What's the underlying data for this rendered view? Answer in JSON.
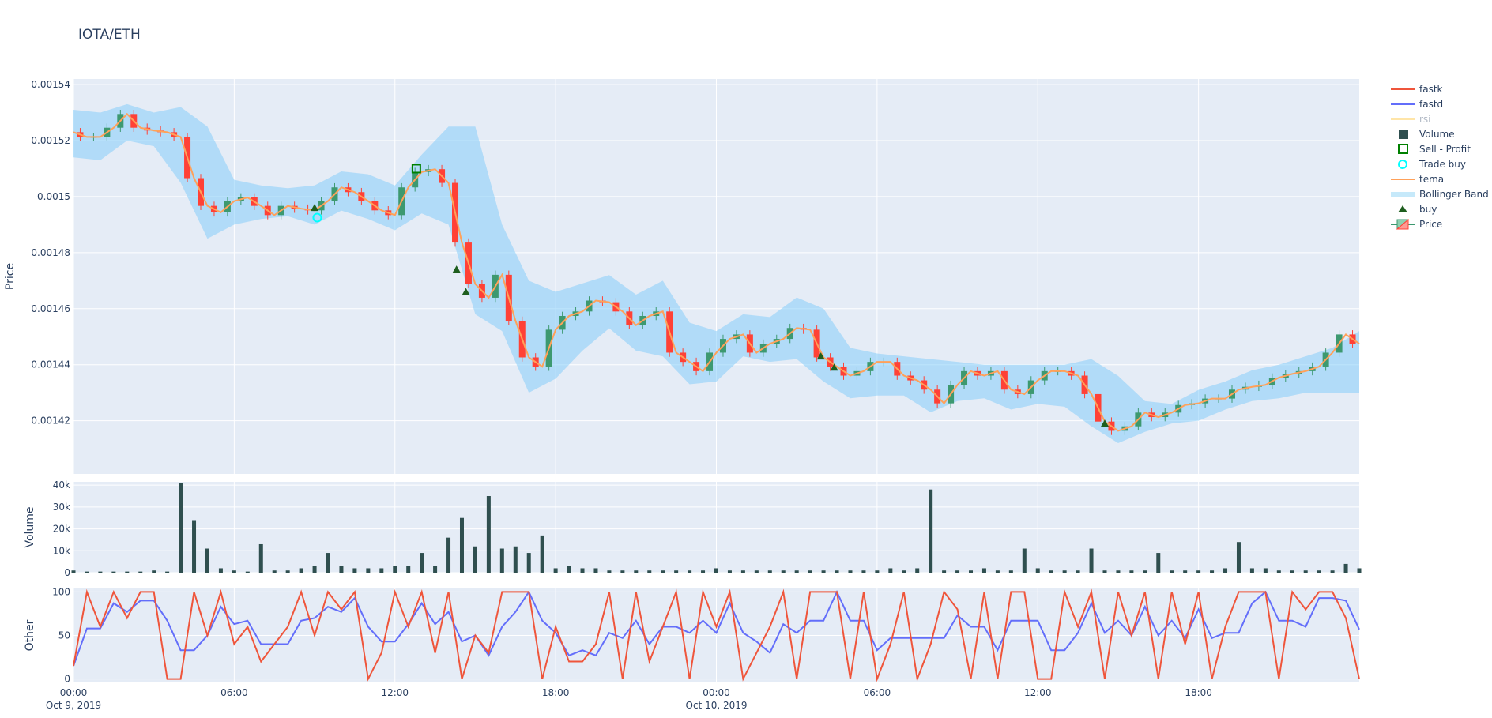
{
  "chart_data": {
    "type": "candlestick",
    "title": "IOTA/ETH",
    "x_start": "2019-10-09 00:00",
    "x_step_minutes": 30,
    "x_range_hours": [
      0,
      48
    ],
    "x_ticks": [
      {
        "hour": 0,
        "label": "00:00",
        "sub": "Oct 9, 2019"
      },
      {
        "hour": 6,
        "label": "06:00",
        "sub": ""
      },
      {
        "hour": 12,
        "label": "12:00",
        "sub": ""
      },
      {
        "hour": 18,
        "label": "18:00",
        "sub": ""
      },
      {
        "hour": 24,
        "label": "00:00",
        "sub": "Oct 10, 2019"
      },
      {
        "hour": 30,
        "label": "06:00",
        "sub": ""
      },
      {
        "hour": 36,
        "label": "12:00",
        "sub": ""
      },
      {
        "hour": 42,
        "label": "18:00",
        "sub": ""
      }
    ],
    "price_panel": {
      "ylabel": "Price",
      "ylim": [
        0.001401,
        0.001542
      ],
      "y_ticks": [
        0.00142,
        0.00144,
        0.00146,
        0.00148,
        0.0015,
        0.00152,
        0.00154
      ],
      "y_tick_labels": [
        "0.00142",
        "0.00144",
        "0.00146",
        "0.00148",
        "0.0015",
        "0.00152",
        "0.00154"
      ],
      "close": [
        0.001523,
        0.0015213,
        0.0015213,
        0.0015246,
        0.0015295,
        0.0015246,
        0.0015236,
        0.001523,
        0.0015213,
        0.0015066,
        0.0014967,
        0.0014944,
        0.0014984,
        0.0014997,
        0.0014967,
        0.0014934,
        0.0014967,
        0.0014957,
        0.0014951,
        0.0014984,
        0.0015033,
        0.0015016,
        0.0014984,
        0.0014951,
        0.0014934,
        0.0015033,
        0.0015088,
        0.0015098,
        0.0015049,
        0.0014836,
        0.0014688,
        0.0014639,
        0.0014721,
        0.0014557,
        0.0014426,
        0.0014393,
        0.0014525,
        0.0014574,
        0.001459,
        0.0014629,
        0.0014623,
        0.001459,
        0.0014541,
        0.0014574,
        0.001459,
        0.0014443,
        0.001441,
        0.0014377,
        0.0014443,
        0.0014492,
        0.0014508,
        0.0014443,
        0.0014475,
        0.0014492,
        0.0014531,
        0.0014525,
        0.0014426,
        0.0014393,
        0.0014361,
        0.0014377,
        0.001441,
        0.001441,
        0.0014361,
        0.0014344,
        0.0014311,
        0.0014262,
        0.0014328,
        0.0014377,
        0.0014361,
        0.0014377,
        0.0014311,
        0.0014295,
        0.0014344,
        0.0014377,
        0.0014377,
        0.0014361,
        0.0014295,
        0.0014197,
        0.0014164,
        0.001418,
        0.0014229,
        0.0014213,
        0.0014229,
        0.0014256,
        0.0014262,
        0.0014279,
        0.0014279,
        0.0014311,
        0.0014321,
        0.0014328,
        0.0014354,
        0.0014367,
        0.0014377,
        0.0014393,
        0.0014443,
        0.0014508,
        0.0014475
      ],
      "bb_step_minutes": 60,
      "bb_upper": [
        0.001531,
        0.00153,
        0.001533,
        0.00153,
        0.001532,
        0.001525,
        0.001506,
        0.001504,
        0.001503,
        0.001504,
        0.001509,
        0.001508,
        0.001504,
        0.001515,
        0.001525,
        0.001525,
        0.00149,
        0.00147,
        0.001466,
        0.001469,
        0.001472,
        0.001465,
        0.00147,
        0.001455,
        0.001452,
        0.001458,
        0.001457,
        0.001464,
        0.00146,
        0.001446,
        0.001444,
        0.001443,
        0.001442,
        0.001441,
        0.00144,
        0.00144,
        0.00144,
        0.00144,
        0.001442,
        0.001436,
        0.001427,
        0.001426,
        0.001431,
        0.001434,
        0.001438,
        0.00144,
        0.001443,
        0.001446,
        0.001452
      ],
      "bb_lower": [
        0.001514,
        0.001513,
        0.00152,
        0.001518,
        0.001505,
        0.001485,
        0.00149,
        0.001492,
        0.001493,
        0.00149,
        0.001495,
        0.001492,
        0.001488,
        0.001494,
        0.00149,
        0.001458,
        0.001452,
        0.00143,
        0.001435,
        0.001445,
        0.001453,
        0.001445,
        0.001443,
        0.001433,
        0.001434,
        0.001443,
        0.001441,
        0.001442,
        0.001434,
        0.001428,
        0.001429,
        0.001429,
        0.001423,
        0.001427,
        0.001428,
        0.001424,
        0.001426,
        0.001425,
        0.001418,
        0.001412,
        0.001416,
        0.001419,
        0.00142,
        0.001424,
        0.001427,
        0.001428,
        0.00143,
        0.00143,
        0.00143
      ],
      "buy_markers": [
        {
          "hour": 9.0,
          "price": 0.001496
        },
        {
          "hour": 14.3,
          "price": 0.001474
        },
        {
          "hour": 14.65,
          "price": 0.001466
        },
        {
          "hour": 27.9,
          "price": 0.001443
        },
        {
          "hour": 28.4,
          "price": 0.001439
        },
        {
          "hour": 38.5,
          "price": 0.001419
        }
      ],
      "trade_buy": [
        {
          "hour": 9.1,
          "price": 0.0014925
        }
      ],
      "sell_profit": [
        {
          "hour": 12.8,
          "price": 0.00151
        }
      ]
    },
    "volume_panel": {
      "ylabel": "Volume",
      "ylim": [
        0,
        41500
      ],
      "y_ticks": [
        0,
        10000,
        20000,
        30000,
        40000
      ],
      "y_tick_labels": [
        "0",
        "10k",
        "20k",
        "30k",
        "40k"
      ],
      "values": [
        1000,
        500,
        500,
        500,
        500,
        500,
        1000,
        500,
        41000,
        24000,
        11000,
        2000,
        1000,
        500,
        13000,
        1000,
        1000,
        2000,
        3000,
        9000,
        3000,
        2000,
        2000,
        2000,
        3000,
        3000,
        9000,
        3000,
        16000,
        25000,
        12000,
        35000,
        11000,
        12000,
        9000,
        17000,
        2000,
        3000,
        2000,
        2000,
        1000,
        1000,
        1000,
        1000,
        1000,
        1000,
        1000,
        1000,
        2000,
        1000,
        1000,
        1000,
        1000,
        1000,
        1000,
        1000,
        1000,
        1000,
        1000,
        1000,
        1000,
        2000,
        1000,
        2000,
        38000,
        1000,
        1000,
        1000,
        2000,
        1000,
        1000,
        11000,
        2000,
        1000,
        1000,
        1000,
        11000,
        1000,
        1000,
        1000,
        1000,
        9000,
        1000,
        1000,
        1000,
        1000,
        2000,
        14000,
        2000,
        2000,
        1000,
        1000,
        1000,
        1000,
        1000,
        4000,
        2000
      ]
    },
    "other_panel": {
      "ylabel": "Other",
      "ylim": [
        -4,
        104
      ],
      "y_ticks": [
        0,
        50,
        100
      ],
      "y_tick_labels": [
        "0",
        "50",
        "100"
      ],
      "fastk": [
        15,
        100,
        60,
        100,
        70,
        100,
        100,
        0,
        0,
        100,
        50,
        100,
        40,
        60,
        20,
        40,
        60,
        100,
        50,
        100,
        80,
        100,
        0,
        30,
        100,
        60,
        100,
        30,
        100,
        0,
        50,
        30,
        100,
        100,
        100,
        0,
        60,
        20,
        20,
        40,
        100,
        0,
        100,
        20,
        60,
        100,
        0,
        100,
        60,
        100,
        0,
        30,
        60,
        100,
        0,
        100,
        100,
        100,
        0,
        100,
        0,
        40,
        100,
        0,
        40,
        100,
        80,
        0,
        100,
        0,
        100,
        100,
        0,
        0,
        100,
        60,
        100,
        0,
        100,
        50,
        100,
        0,
        100,
        40,
        100,
        0,
        60,
        100,
        100,
        100,
        0,
        100,
        80,
        100,
        100,
        70,
        0
      ],
      "fastd": [
        15,
        58,
        58,
        87,
        77,
        90,
        90,
        67,
        33,
        33,
        50,
        83,
        63,
        67,
        40,
        40,
        40,
        67,
        70,
        83,
        77,
        93,
        60,
        43,
        43,
        63,
        87,
        63,
        77,
        43,
        50,
        27,
        60,
        77,
        100,
        67,
        53,
        27,
        33,
        27,
        53,
        47,
        67,
        40,
        60,
        60,
        53,
        67,
        53,
        87,
        53,
        43,
        30,
        63,
        53,
        67,
        67,
        100,
        67,
        67,
        33,
        47,
        47,
        47,
        47,
        47,
        73,
        60,
        60,
        33,
        67,
        67,
        67,
        33,
        33,
        53,
        87,
        53,
        67,
        50,
        83,
        50,
        67,
        47,
        80,
        47,
        53,
        53,
        87,
        100,
        67,
        67,
        60,
        93,
        93,
        90,
        57
      ]
    },
    "legend": {
      "placement": "right",
      "items": [
        {
          "name": "fastk",
          "symbol": "line",
          "color": "#EF553B"
        },
        {
          "name": "fastd",
          "symbol": "line",
          "color": "#636EFA"
        },
        {
          "name": "rsi",
          "symbol": "line",
          "color": "#FFE5A8",
          "hidden": true
        },
        {
          "name": "Volume",
          "symbol": "square",
          "color": "#2F4F4F"
        },
        {
          "name": "Sell - Profit",
          "symbol": "square-open",
          "color": "#008000"
        },
        {
          "name": "Trade buy",
          "symbol": "circle-open",
          "color": "#00FFFF"
        },
        {
          "name": "tema",
          "symbol": "line",
          "color": "#FFA15A"
        },
        {
          "name": "Bollinger Band",
          "symbol": "band",
          "color": "#C6E9FA"
        },
        {
          "name": "buy",
          "symbol": "triangle-up",
          "color": "#1E5E1E"
        },
        {
          "name": "Price",
          "symbol": "candle",
          "color": "#3D9970"
        }
      ]
    },
    "colors": {
      "increasing": "#3D9970",
      "decreasing": "#FF4136",
      "band": "#87CEFA",
      "plot_bg": "#E5ECF6",
      "grid": "#FFFFFF"
    }
  }
}
